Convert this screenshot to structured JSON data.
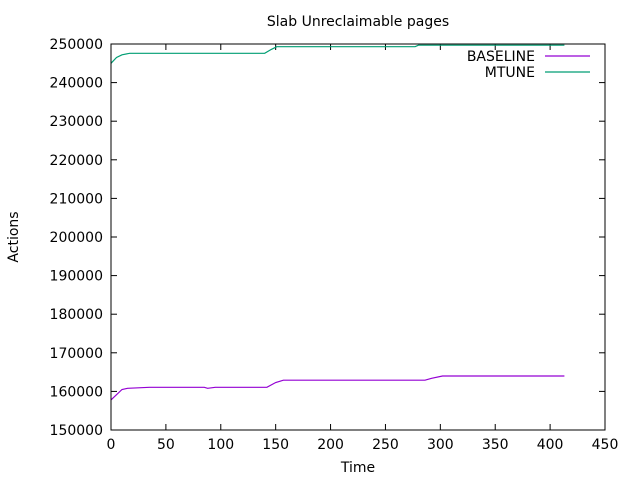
{
  "chart_data": {
    "type": "line",
    "title": "Slab Unreclaimable pages",
    "xlabel": "Time",
    "ylabel": "Actions",
    "xlim": [
      0,
      450
    ],
    "ylim": [
      150000,
      250000
    ],
    "xticks": [
      0,
      50,
      100,
      150,
      200,
      250,
      300,
      350,
      400,
      450
    ],
    "yticks": [
      150000,
      160000,
      170000,
      180000,
      190000,
      200000,
      210000,
      220000,
      230000,
      240000,
      250000
    ],
    "grid": false,
    "legend": "top-right",
    "series": [
      {
        "name": "BASELINE",
        "color": "#9400d3",
        "x": [
          0,
          10,
          15,
          35,
          85,
          88,
          95,
          142,
          150,
          157,
          286,
          292,
          302,
          413
        ],
        "y": [
          157800,
          160500,
          160800,
          161050,
          161050,
          160800,
          161050,
          161050,
          162300,
          162900,
          162900,
          163400,
          164000,
          164000
        ]
      },
      {
        "name": "MTUNE",
        "color": "#009e73",
        "x": [
          0,
          5,
          10,
          17,
          140,
          146,
          151,
          277,
          280,
          413
        ],
        "y": [
          245000,
          246500,
          247200,
          247600,
          247600,
          248600,
          249300,
          249300,
          249700,
          249700
        ]
      }
    ]
  }
}
